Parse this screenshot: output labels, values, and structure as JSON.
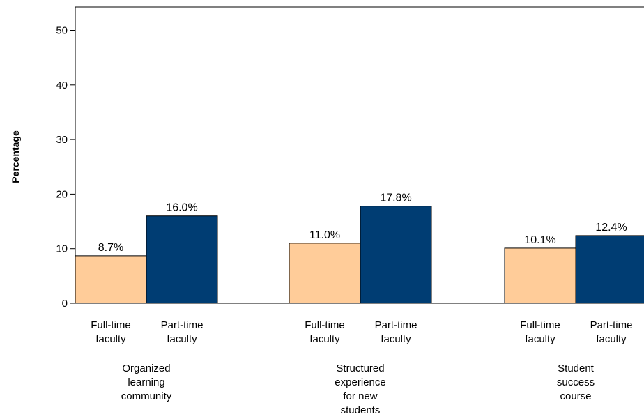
{
  "chart_data": {
    "type": "bar",
    "title": "",
    "xlabel": "",
    "ylabel": "Percentage",
    "ylim": [
      0,
      50
    ],
    "yticks": [
      0,
      10,
      20,
      30,
      40,
      50
    ],
    "grid": false,
    "legend": "none",
    "groups": [
      {
        "label_lines": [
          "Organized",
          "learning",
          "community"
        ],
        "bars": [
          {
            "label_lines": [
              "Full-time",
              "faculty"
            ],
            "value": 8.7,
            "value_label": "8.7%"
          },
          {
            "label_lines": [
              "Part-time",
              "faculty"
            ],
            "value": 16.0,
            "value_label": "16.0%"
          }
        ]
      },
      {
        "label_lines": [
          "Structured",
          "experience",
          "for new",
          "students"
        ],
        "bars": [
          {
            "label_lines": [
              "Full-time",
              "faculty"
            ],
            "value": 11.0,
            "value_label": "11.0%"
          },
          {
            "label_lines": [
              "Part-time",
              "faculty"
            ],
            "value": 17.8,
            "value_label": "17.8%"
          }
        ]
      },
      {
        "label_lines": [
          "Student",
          "success",
          "course"
        ],
        "bars": [
          {
            "label_lines": [
              "Full-time",
              "faculty"
            ],
            "value": 10.1,
            "value_label": "10.1%"
          },
          {
            "label_lines": [
              "Part-time",
              "faculty"
            ],
            "value": 12.4,
            "value_label": "12.4%"
          }
        ]
      }
    ],
    "colors": {
      "full_time": "#FFCC99",
      "part_time": "#003D73",
      "bar_stroke": "#000000"
    }
  }
}
